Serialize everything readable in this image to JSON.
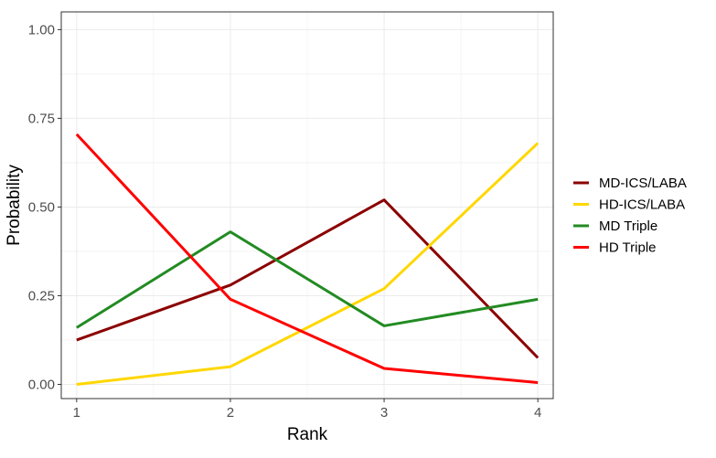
{
  "chart_data": {
    "type": "line",
    "title": "",
    "xlabel": "Rank",
    "ylabel": "Probability",
    "x": [
      1,
      2,
      3,
      4
    ],
    "x_ticks": [
      "1",
      "2",
      "3",
      "4"
    ],
    "y_ticks": [
      "0.00",
      "0.25",
      "0.50",
      "0.75",
      "1.00"
    ],
    "y_tick_values": [
      0,
      0.25,
      0.5,
      0.75,
      1.0
    ],
    "xlim": [
      0.9,
      4.1
    ],
    "ylim": [
      -0.04,
      1.05
    ],
    "grid": true,
    "legend_position": "right",
    "series": [
      {
        "name": "MD-ICS/LABA",
        "color": "#8B0000",
        "values": [
          0.125,
          0.28,
          0.52,
          0.075
        ]
      },
      {
        "name": "HD-ICS/LABA",
        "color": "#FFD700",
        "values": [
          0.0,
          0.05,
          0.27,
          0.68
        ]
      },
      {
        "name": "MD Triple",
        "color": "#228B22",
        "values": [
          0.16,
          0.43,
          0.165,
          0.24
        ]
      },
      {
        "name": "HD Triple",
        "color": "#FF0000",
        "values": [
          0.705,
          0.24,
          0.045,
          0.005
        ]
      }
    ]
  }
}
